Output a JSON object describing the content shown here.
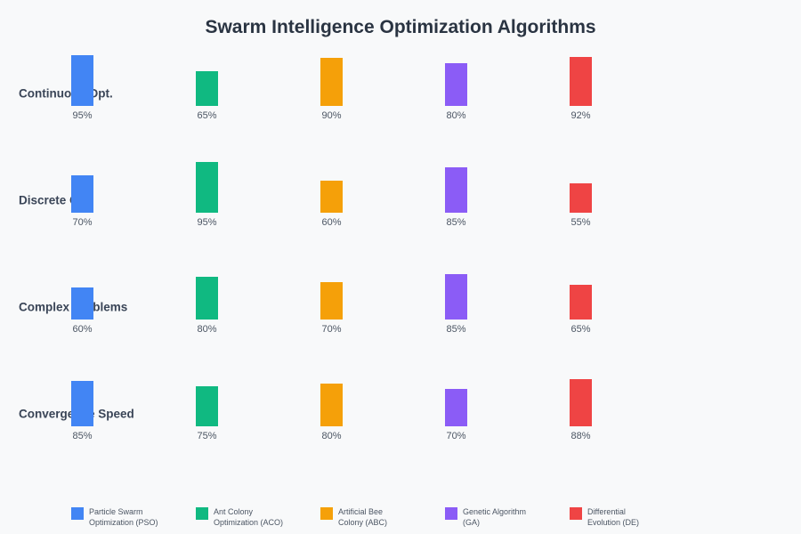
{
  "chart_data": {
    "type": "bar",
    "title": "Swarm Intelligence Optimization Algorithms",
    "orientation": "vertical-grouped-by-row",
    "categories": [
      "Continuous Opt.",
      "Discrete Opt.",
      "Complex Problems",
      "Convergence Speed"
    ],
    "series": [
      {
        "name": "Particle Swarm Optimization (PSO)",
        "color": "#4285F4",
        "values": [
          95,
          70,
          60,
          85
        ]
      },
      {
        "name": "Ant Colony Optimization (ACO)",
        "color": "#10B981",
        "values": [
          65,
          95,
          80,
          75
        ]
      },
      {
        "name": "Artificial Bee Colony (ABC)",
        "color": "#F5A009",
        "values": [
          90,
          60,
          70,
          80
        ]
      },
      {
        "name": "Genetic Algorithm (GA)",
        "color": "#8B5CF6",
        "values": [
          80,
          85,
          85,
          70
        ]
      },
      {
        "name": "Differential Evolution (DE)",
        "color": "#EF4444",
        "values": [
          92,
          55,
          65,
          88
        ]
      }
    ],
    "value_suffix": "%",
    "ylim": [
      0,
      100
    ],
    "grid": false,
    "axes_visible": false,
    "legend_position": "bottom"
  },
  "legend": {
    "items": [
      {
        "lines": [
          "Particle Swarm",
          "Optimization (PSO)"
        ]
      },
      {
        "lines": [
          "Ant Colony",
          "Optimization (ACO)"
        ]
      },
      {
        "lines": [
          "Artificial Bee",
          "Colony (ABC)"
        ]
      },
      {
        "lines": [
          "Genetic Algorithm",
          "(GA)"
        ]
      },
      {
        "lines": [
          "Differential",
          "Evolution (DE)"
        ]
      }
    ]
  },
  "colors": {
    "background": "#F8F9FA",
    "title_text": "#2A3442",
    "row_label_text": "#3A4557",
    "value_text": "#4B5563",
    "legend_text": "#4B5563"
  }
}
